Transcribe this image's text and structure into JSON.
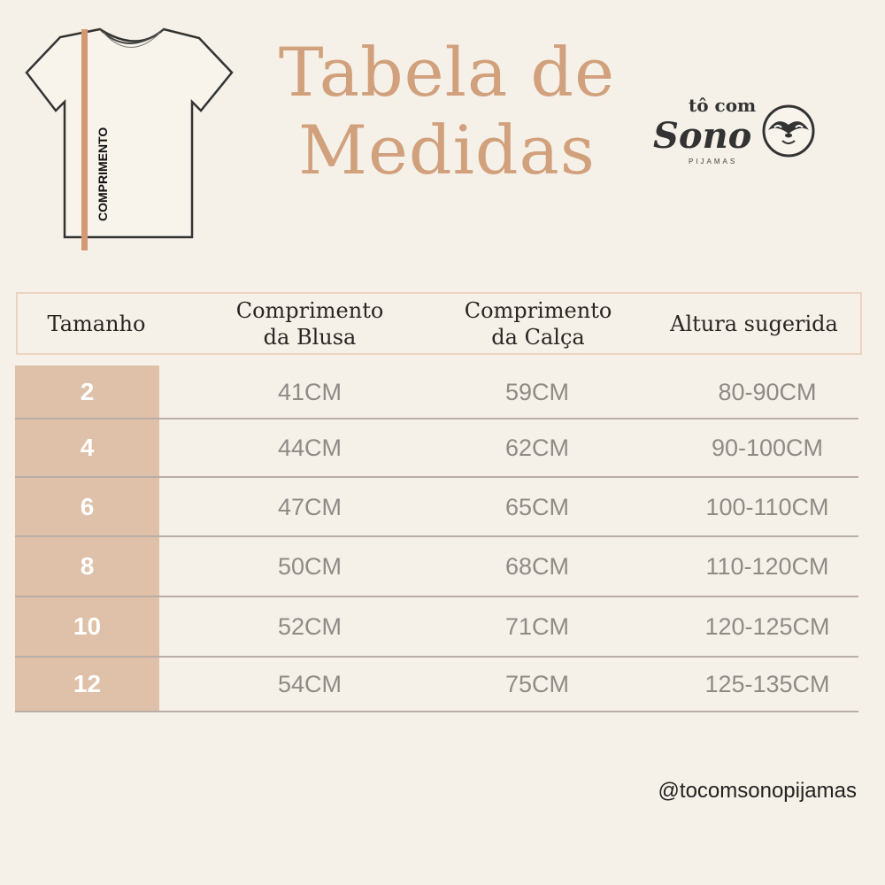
{
  "title": "Tabela de\nMedidas",
  "illustration": {
    "label": "COMPRIMENTO",
    "icon": "tshirt-icon"
  },
  "logo": {
    "line1": "tô com",
    "line2": "Sono",
    "line3": "PIJAMAS",
    "icon": "sloth-icon"
  },
  "colors": {
    "background": "#f6f1e8",
    "accent": "#d1a07c",
    "size_column": "#dfc0a8"
  },
  "table": {
    "headers": [
      "Tamanho",
      "Comprimento\nda Blusa",
      "Comprimento\nda Calça",
      "Altura sugerida"
    ],
    "rows": [
      [
        "2",
        "41CM",
        "59CM",
        "80-90CM"
      ],
      [
        "4",
        "44CM",
        "62CM",
        "90-100CM"
      ],
      [
        "6",
        "47CM",
        "65CM",
        "100-110CM"
      ],
      [
        "8",
        "50CM",
        "68CM",
        "110-120CM"
      ],
      [
        "10",
        "52CM",
        "71CM",
        "120-125CM"
      ],
      [
        "12",
        "54CM",
        "75CM",
        "125-135CM"
      ]
    ]
  },
  "handle": "@tocomsonopijamas"
}
